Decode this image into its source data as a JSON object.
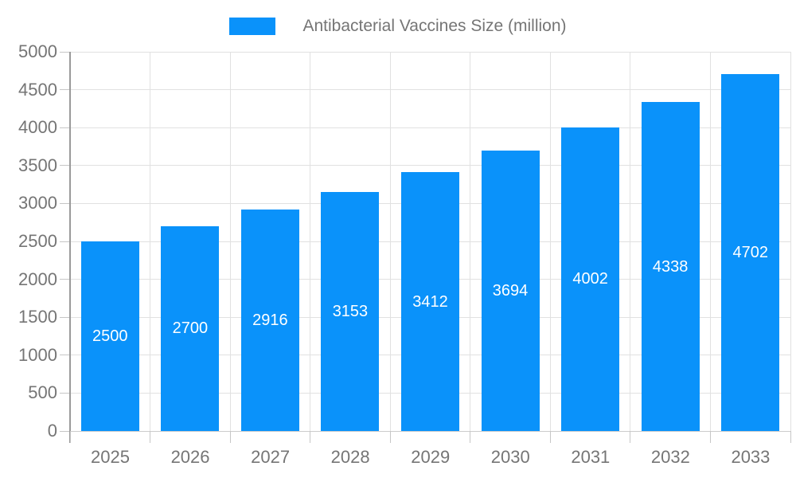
{
  "legend": {
    "label": "Antibacterial Vaccines Size (million)"
  },
  "chart_data": {
    "type": "bar",
    "title": "Antibacterial Vaccines Size (million)",
    "categories": [
      "2025",
      "2026",
      "2027",
      "2028",
      "2029",
      "2030",
      "2031",
      "2032",
      "2033"
    ],
    "values": [
      2500,
      2700,
      2916,
      3153,
      3412,
      3694,
      4002,
      4338,
      4702
    ],
    "series": [
      {
        "name": "Antibacterial Vaccines Size (million)",
        "values": [
          2500,
          2700,
          2916,
          3153,
          3412,
          3694,
          4002,
          4338,
          4702
        ]
      }
    ],
    "xlabel": "",
    "ylabel": "",
    "ylim": [
      0,
      5000
    ],
    "ytick_step": 500,
    "yticks": [
      0,
      500,
      1000,
      1500,
      2000,
      2500,
      3000,
      3500,
      4000,
      4500,
      5000
    ],
    "grid": "on",
    "legend_position": "top-center",
    "value_labels": "inside-center",
    "colors": {
      "bar": "#0a92fa",
      "value_label": "#ffffff",
      "axis_text": "#757575",
      "gridline": "#e1e1e1",
      "axis_line": "#9a9a9a",
      "bottom_line": "#cccccc",
      "tick": "#c6c6c6",
      "background": "#ffffff"
    }
  }
}
